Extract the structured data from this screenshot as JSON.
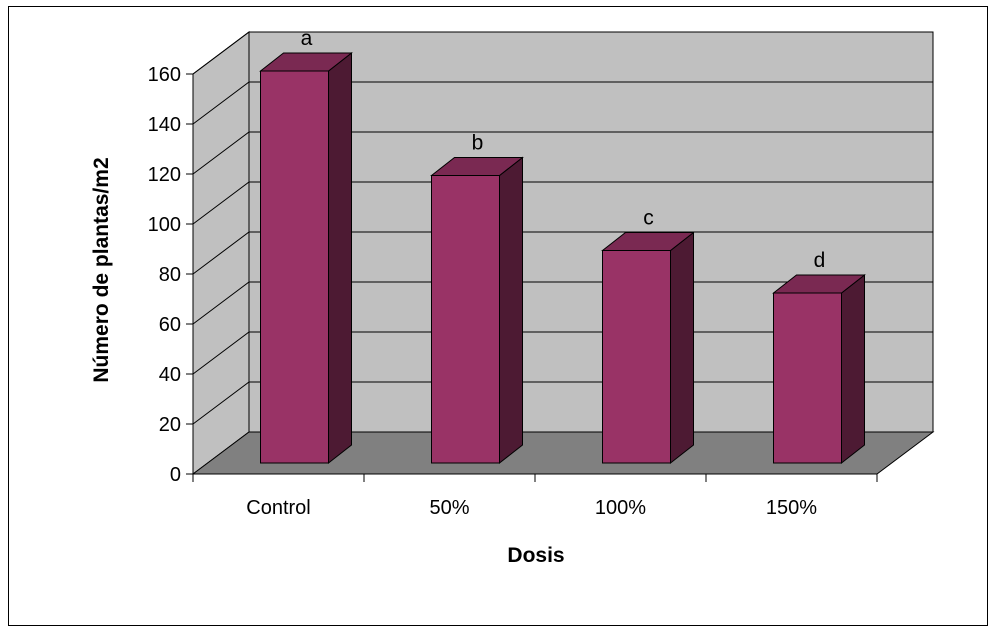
{
  "chart_data": {
    "type": "bar",
    "title": "",
    "xlabel": "Dosis",
    "ylabel": "Número de plantas/m2",
    "categories": [
      "Control",
      "50%",
      "100%",
      "150%"
    ],
    "values": [
      160,
      115,
      85,
      68
    ],
    "data_labels": [
      "a",
      "b",
      "c",
      "d"
    ],
    "ylim": [
      0,
      160
    ],
    "yticks": [
      0,
      20,
      40,
      60,
      80,
      100,
      120,
      140,
      160
    ],
    "ytick_labels": [
      "0",
      "20",
      "40",
      "60",
      "80",
      "100",
      "120",
      "140",
      "160"
    ],
    "grid": true,
    "three_d": true,
    "colors": {
      "bar_front": "#993366",
      "bar_top": "#7a2952",
      "bar_side": "#4d1a33",
      "wall": "#c0c0c0",
      "floor": "#808080",
      "side_wall": "#c0c0c0"
    }
  }
}
